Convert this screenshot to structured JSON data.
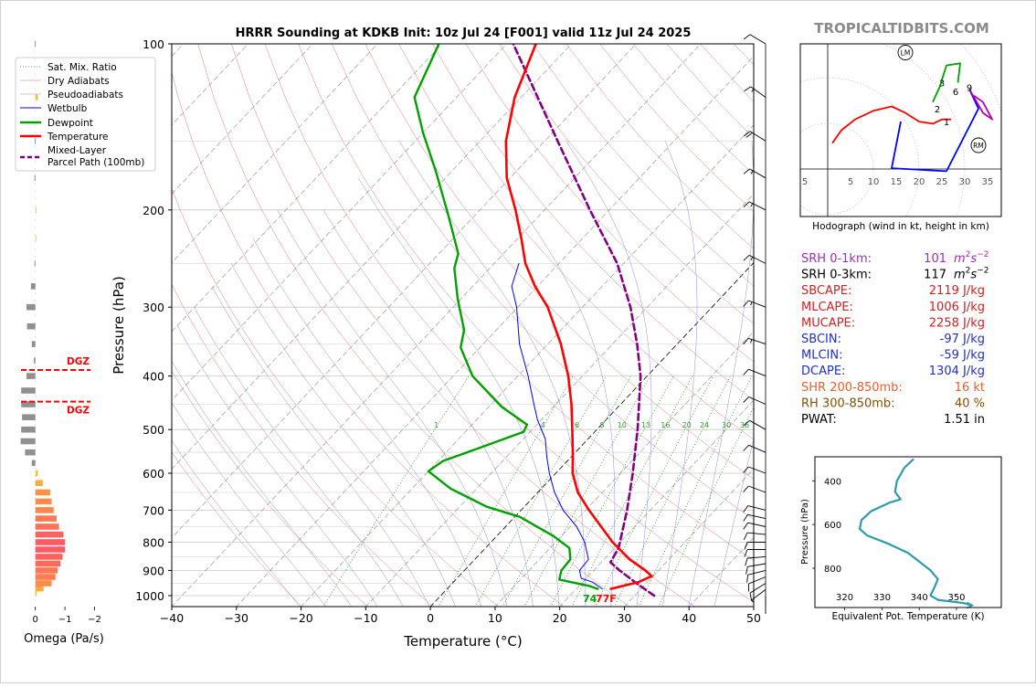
{
  "brand": "TROPICALTIDBITS.COM",
  "chart_data": [
    {
      "type": "line",
      "name": "skewt",
      "title": "HRRR Sounding at KDKB Init: 10z Jul 24 [F001] valid 11z Jul 24 2025",
      "xlabel": "Temperature (°C)",
      "ylabel": "Pressure (hPa)",
      "xlim": [
        -40,
        50
      ],
      "ylim": [
        1050,
        100
      ],
      "y_scale": "log",
      "skew": true,
      "x_ticks": [
        -40,
        -30,
        -20,
        -10,
        0,
        10,
        20,
        30,
        40,
        50
      ],
      "x_tick_labels": [
        "−40",
        "−30",
        "−20",
        "−10",
        "0",
        "10",
        "20",
        "30",
        "40",
        "50"
      ],
      "p_ticks": [
        1000,
        900,
        800,
        700,
        600,
        500,
        400,
        300,
        200,
        100
      ],
      "p_tick_labels": [
        "1000",
        "900",
        "800",
        "700",
        "600",
        "500",
        "400",
        "300",
        "200",
        "100"
      ],
      "legend": {
        "placement": "upper-left",
        "entries": [
          {
            "label": "Sat. Mix. Ratio",
            "color": "#2f8f2f",
            "style": "dotted"
          },
          {
            "label": "Dry Adiabats",
            "color": "#e07070",
            "style": "solid-thin"
          },
          {
            "label": "Pseudoadiabats",
            "color": "#8a8ad8",
            "style": "solid-thin"
          },
          {
            "label": "Wetbulb",
            "color": "#0000ff",
            "style": "solid"
          },
          {
            "label": "Dewpoint",
            "color": "#00a000",
            "style": "thick"
          },
          {
            "label": "Temperature",
            "color": "#ff0000",
            "style": "thick"
          },
          {
            "label": "Mixed-Layer\nParcel Path (100mb)",
            "color": "#800080",
            "style": "dashed"
          }
        ]
      },
      "mixing_ratio_labels": [
        "1",
        "4",
        "6",
        "8",
        "10",
        "13",
        "16",
        "20",
        "24",
        "30",
        "36"
      ],
      "mixing_ratio_values": [
        1,
        4,
        6,
        8,
        10,
        13,
        16,
        20,
        24,
        30,
        36
      ],
      "surface_labels": {
        "dewpoint": "74",
        "temperature": "77F"
      },
      "series": [
        {
          "name": "Temperature",
          "color": "#ff0000",
          "points": [
            [
              972,
              25.3
            ],
            [
              945,
              28.6
            ],
            [
              922,
              29.8
            ],
            [
              900,
              28.0
            ],
            [
              860,
              24.0
            ],
            [
              800,
              18.8
            ],
            [
              700,
              10.5
            ],
            [
              650,
              6.2
            ],
            [
              600,
              2.6
            ],
            [
              550,
              -0.4
            ],
            [
              500,
              -3.8
            ],
            [
              450,
              -7.6
            ],
            [
              400,
              -12.2
            ],
            [
              350,
              -18.0
            ],
            [
              300,
              -25.4
            ],
            [
              275,
              -30.4
            ],
            [
              250,
              -35.2
            ],
            [
              225,
              -39.5
            ],
            [
              200,
              -44.5
            ],
            [
              175,
              -50.5
            ],
            [
              150,
              -56.0
            ],
            [
              125,
              -61.0
            ],
            [
              100,
              -65.5
            ]
          ]
        },
        {
          "name": "Dewpoint",
          "color": "#00a000",
          "points": [
            [
              972,
              23.3
            ],
            [
              960,
              21.5
            ],
            [
              935,
              16.0
            ],
            [
              900,
              15.0
            ],
            [
              860,
              14.8
            ],
            [
              820,
              13.0
            ],
            [
              780,
              8.8
            ],
            [
              720,
              0.8
            ],
            [
              690,
              -5.8
            ],
            [
              640,
              -14.0
            ],
            [
              595,
              -20.0
            ],
            [
              570,
              -19.2
            ],
            [
              540,
              -15.5
            ],
            [
              505,
              -11.0
            ],
            [
              490,
              -11.5
            ],
            [
              455,
              -18.0
            ],
            [
              400,
              -27.0
            ],
            [
              355,
              -33.0
            ],
            [
              330,
              -35.0
            ],
            [
              290,
              -40.5
            ],
            [
              255,
              -45.5
            ],
            [
              240,
              -47.0
            ],
            [
              205,
              -54.0
            ],
            [
              170,
              -62.5
            ],
            [
              145,
              -70.0
            ],
            [
              125,
              -76.5
            ],
            [
              100,
              -80.5
            ]
          ]
        },
        {
          "name": "Wetbulb",
          "color": "#0000ff",
          "points": [
            [
              972,
              24.0
            ],
            [
              945,
              21.5
            ],
            [
              930,
              19.2
            ],
            [
              900,
              17.8
            ],
            [
              860,
              17.6
            ],
            [
              800,
              14.5
            ],
            [
              750,
              11.0
            ],
            [
              700,
              6.5
            ],
            [
              650,
              2.6
            ],
            [
              600,
              -1.0
            ],
            [
              560,
              -3.8
            ],
            [
              520,
              -6.6
            ],
            [
              480,
              -10.6
            ],
            [
              450,
              -13.4
            ],
            [
              400,
              -18.4
            ],
            [
              350,
              -24.4
            ],
            [
              300,
              -30.2
            ],
            [
              275,
              -34.0
            ],
            [
              250,
              -36.2
            ]
          ]
        },
        {
          "name": "Mixed-Layer Parcel Path (100mb)",
          "color": "#800080",
          "points": [
            [
              1000,
              33.0
            ],
            [
              950,
              28.5
            ],
            [
              900,
              24.0
            ],
            [
              870,
              21.4
            ],
            [
              820,
              20.6
            ],
            [
              700,
              16.4
            ],
            [
              600,
              11.9
            ],
            [
              500,
              6.3
            ],
            [
              400,
              -1.0
            ],
            [
              350,
              -6.2
            ],
            [
              300,
              -12.6
            ],
            [
              250,
              -21.0
            ],
            [
              200,
              -33.0
            ],
            [
              150,
              -48.0
            ],
            [
              100,
              -69.0
            ]
          ]
        }
      ],
      "wind_barbs": [
        {
          "p": 1000,
          "u": 0,
          "v": 2
        },
        {
          "p": 975,
          "u": 4,
          "v": 3
        },
        {
          "p": 950,
          "u": 8,
          "v": 5
        },
        {
          "p": 925,
          "u": 10,
          "v": 4
        },
        {
          "p": 900,
          "u": 12,
          "v": 3
        },
        {
          "p": 875,
          "u": 12,
          "v": 2
        },
        {
          "p": 850,
          "u": 12,
          "v": 1
        },
        {
          "p": 825,
          "u": 11,
          "v": 0
        },
        {
          "p": 800,
          "u": 11,
          "v": 0
        },
        {
          "p": 775,
          "u": 10,
          "v": -1
        },
        {
          "p": 750,
          "u": 9,
          "v": -2
        },
        {
          "p": 725,
          "u": 9,
          "v": -2
        },
        {
          "p": 700,
          "u": 8,
          "v": -2
        },
        {
          "p": 650,
          "u": 8,
          "v": -3
        },
        {
          "p": 600,
          "u": 8,
          "v": -3
        },
        {
          "p": 550,
          "u": 7,
          "v": -3
        },
        {
          "p": 500,
          "u": 7,
          "v": -4
        },
        {
          "p": 450,
          "u": 9,
          "v": -4
        },
        {
          "p": 400,
          "u": 10,
          "v": -4
        },
        {
          "p": 350,
          "u": 12,
          "v": -4
        },
        {
          "p": 300,
          "u": 13,
          "v": -5
        },
        {
          "p": 250,
          "u": 12,
          "v": -6
        },
        {
          "p": 200,
          "u": 12,
          "v": -6
        },
        {
          "p": 175,
          "u": 14,
          "v": -8
        },
        {
          "p": 150,
          "u": 16,
          "v": -10
        },
        {
          "p": 125,
          "u": 14,
          "v": -10
        },
        {
          "p": 100,
          "u": 10,
          "v": -6
        }
      ]
    },
    {
      "type": "bar",
      "name": "omega",
      "xlabel": "Omega (Pa/s)",
      "xlim": [
        0.3,
        -2.2
      ],
      "x_ticks": [
        0,
        -1,
        -2
      ],
      "x_tick_labels": [
        "0",
        "−1",
        "−2"
      ],
      "dgz_label": "DGZ",
      "dgz_pressures": [
        390,
        445
      ],
      "bars": [
        {
          "p": 990,
          "v": -0.05
        },
        {
          "p": 970,
          "v": -0.28
        },
        {
          "p": 950,
          "v": -0.55
        },
        {
          "p": 925,
          "v": -0.68
        },
        {
          "p": 900,
          "v": -0.75
        },
        {
          "p": 875,
          "v": -0.85
        },
        {
          "p": 850,
          "v": -0.92
        },
        {
          "p": 825,
          "v": -1.0
        },
        {
          "p": 800,
          "v": -1.0
        },
        {
          "p": 775,
          "v": -0.95
        },
        {
          "p": 750,
          "v": -0.8
        },
        {
          "p": 725,
          "v": -0.72
        },
        {
          "p": 700,
          "v": -0.62
        },
        {
          "p": 675,
          "v": -0.55
        },
        {
          "p": 650,
          "v": -0.5
        },
        {
          "p": 625,
          "v": -0.25
        },
        {
          "p": 600,
          "v": -0.08
        },
        {
          "p": 575,
          "v": 0.12
        },
        {
          "p": 550,
          "v": 0.35
        },
        {
          "p": 525,
          "v": 0.5
        },
        {
          "p": 500,
          "v": 0.48
        },
        {
          "p": 475,
          "v": 0.45
        },
        {
          "p": 450,
          "v": 0.48
        },
        {
          "p": 425,
          "v": 0.48
        },
        {
          "p": 400,
          "v": 0.3
        },
        {
          "p": 375,
          "v": 0.05
        },
        {
          "p": 350,
          "v": 0.12
        },
        {
          "p": 325,
          "v": 0.28
        },
        {
          "p": 300,
          "v": 0.3
        },
        {
          "p": 275,
          "v": 0.15
        },
        {
          "p": 250,
          "v": 0.03
        },
        {
          "p": 225,
          "v": -0.02
        },
        {
          "p": 200,
          "v": -0.02
        },
        {
          "p": 175,
          "v": 0.03
        },
        {
          "p": 150,
          "v": 0.02
        },
        {
          "p": 125,
          "v": -0.08
        },
        {
          "p": 100,
          "v": 0.02
        }
      ]
    },
    {
      "type": "line",
      "name": "hodograph",
      "xlabel": "Hodograph (wind in kt, height in km)",
      "xlim": [
        -6,
        38
      ],
      "ylim": [
        -11,
        29
      ],
      "ring_labels": [
        "5",
        "5",
        "10",
        "15",
        "20",
        "25",
        "30",
        "35"
      ],
      "ring_label_values": [
        -5,
        5,
        10,
        15,
        20,
        25,
        30,
        35
      ],
      "height_labels": [
        {
          "label": "1",
          "u": 26,
          "v": 11
        },
        {
          "label": "2",
          "u": 24,
          "v": 14
        },
        {
          "label": "3",
          "u": 25,
          "v": 20
        },
        {
          "label": "6",
          "u": 28,
          "v": 18
        },
        {
          "label": "9",
          "u": 31,
          "v": 19
        }
      ],
      "markers": [
        {
          "label": "LM",
          "u": 17,
          "v": 27
        },
        {
          "label": "RM",
          "u": 33,
          "v": 5.5
        }
      ],
      "segments": [
        {
          "color": "#ff0000",
          "points": [
            [
              1,
              6
            ],
            [
              3,
              9
            ],
            [
              6,
              11.5
            ],
            [
              10,
              13.5
            ],
            [
              14,
              14.5
            ],
            [
              17,
              13
            ],
            [
              20,
              11
            ],
            [
              23,
              10.5
            ],
            [
              25,
              11.5
            ],
            [
              27,
              11.5
            ]
          ]
        },
        {
          "color": "#0000ff",
          "points": [
            [
              16,
              11
            ],
            [
              14,
              0.2
            ],
            [
              26,
              -0.5
            ],
            [
              33,
              14
            ],
            [
              31,
              18.5
            ]
          ]
        },
        {
          "color": "#b000b0",
          "points": [
            [
              31,
              18.5
            ],
            [
              34,
              13
            ],
            [
              36,
              11.5
            ],
            [
              34,
              15.5
            ],
            [
              32,
              17
            ]
          ]
        },
        {
          "color": "#00a000",
          "points": [
            [
              23,
              15.5
            ],
            [
              24.5,
              19
            ],
            [
              26,
              24
            ],
            [
              29,
              24.5
            ],
            [
              28.5,
              20
            ]
          ]
        }
      ]
    },
    {
      "type": "line",
      "name": "theta-e",
      "xlabel": "Equivalent Pot. Temperature (K)",
      "ylabel": "Pressure (hPa)",
      "xlim": [
        312,
        362
      ],
      "ylim": [
        980,
        290
      ],
      "x_ticks": [
        320,
        330,
        340,
        350
      ],
      "x_tick_labels": [
        "320",
        "330",
        "340",
        "350"
      ],
      "y_ticks": [
        400,
        600,
        800
      ],
      "y_tick_labels": [
        "400",
        "600",
        "800"
      ],
      "color": "#2e9aaa",
      "points": [
        [
          300,
          338.5
        ],
        [
          340,
          336
        ],
        [
          400,
          334
        ],
        [
          450,
          333.5
        ],
        [
          485,
          335
        ],
        [
          500,
          332
        ],
        [
          540,
          327
        ],
        [
          580,
          324.5
        ],
        [
          620,
          324
        ],
        [
          650,
          326
        ],
        [
          690,
          332
        ],
        [
          730,
          337
        ],
        [
          770,
          340
        ],
        [
          810,
          343
        ],
        [
          850,
          345
        ],
        [
          890,
          344
        ],
        [
          925,
          343
        ],
        [
          945,
          345
        ],
        [
          960,
          352
        ],
        [
          970,
          354
        ]
      ]
    }
  ],
  "stats": [
    {
      "label": "SRH 0-1km:",
      "value": "101",
      "unit_base": "m",
      "unit_sup": "2",
      "unit_mid": "s",
      "unit_sup2": "−2",
      "color": "#9b30b0",
      "italic_unit": true
    },
    {
      "label": "SRH 0-3km:",
      "value": "117",
      "unit_base": "m",
      "unit_sup": "2",
      "unit_mid": "s",
      "unit_sup2": "−2",
      "color": "#000000",
      "italic_unit": true
    },
    {
      "label": "SBCAPE:",
      "value": "2119 J/kg",
      "color": "#d02020"
    },
    {
      "label": "MLCAPE:",
      "value": "1006 J/kg",
      "color": "#d02020"
    },
    {
      "label": "MUCAPE:",
      "value": "2258 J/kg",
      "color": "#d02020"
    },
    {
      "label": "SBCIN:",
      "value": "-97 J/kg",
      "color": "#2030c0"
    },
    {
      "label": "MLCIN:",
      "value": "-59 J/kg",
      "color": "#2030c0"
    },
    {
      "label": "DCAPE:",
      "value": "1304 J/kg",
      "color": "#2030c0"
    },
    {
      "label": "SHR 200-850mb:",
      "value": "16 kt",
      "color": "#e06030"
    },
    {
      "label": "RH 300-850mb:",
      "value": "40 %",
      "color": "#805000"
    },
    {
      "label": "PWAT:",
      "value": "1.51 in",
      "color": "#000000"
    }
  ]
}
